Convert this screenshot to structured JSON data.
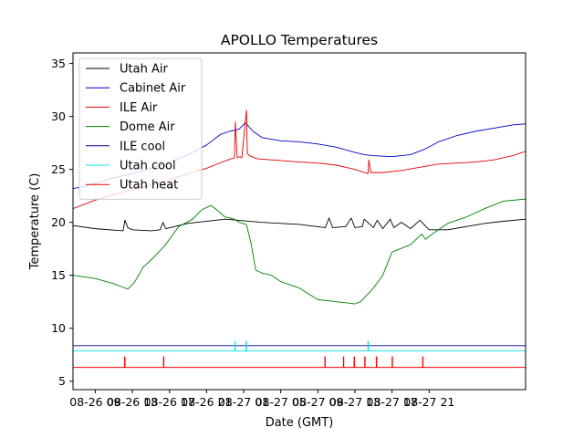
{
  "chart_data": {
    "type": "line",
    "title": "APOLLO Temperatures",
    "xlabel": "Date (GMT)",
    "ylabel": "Temperature (C)",
    "x_unit": "hours since 08-26 00:00",
    "xlim": [
      -2.4,
      46.4
    ],
    "ylim": [
      4.2,
      36.0
    ],
    "xticks": [
      {
        "x": 0,
        "label": "08-26 09"
      },
      {
        "x": 4,
        "label": "08-26 13"
      },
      {
        "x": 8,
        "label": "08-26 17"
      },
      {
        "x": 12,
        "label": "08-26 21"
      },
      {
        "x": 16,
        "label": "08-27 01"
      },
      {
        "x": 20,
        "label": "08-27 05"
      },
      {
        "x": 24,
        "label": "08-27 09"
      },
      {
        "x": 28,
        "label": "08-27 13"
      },
      {
        "x": 32,
        "label": "08-27 17"
      },
      {
        "x": 36,
        "label": "08-27 21"
      }
    ],
    "yticks": [
      5,
      10,
      15,
      20,
      25,
      30,
      35
    ],
    "legend_position": "top-left",
    "series": [
      {
        "name": "Utah Air",
        "color": "#000000",
        "x": [
          -2.4,
          0,
          3,
          3.2,
          3.5,
          4,
          6,
          7,
          7.3,
          7.6,
          10,
          14,
          18,
          22,
          24.8,
          25.2,
          25.6,
          27,
          27.6,
          28,
          28.8,
          29,
          30,
          30.4,
          31,
          31.8,
          32.2,
          33,
          34,
          35,
          36,
          38,
          40,
          42,
          44,
          46.4
        ],
        "y": [
          19.7,
          19.4,
          19.2,
          20.2,
          19.5,
          19.3,
          19.2,
          19.3,
          20.0,
          19.4,
          19.9,
          20.3,
          20.0,
          19.8,
          19.5,
          20.4,
          19.5,
          19.6,
          20.4,
          19.5,
          19.6,
          20.3,
          19.5,
          20.2,
          19.4,
          20.3,
          19.5,
          20.0,
          19.4,
          20.2,
          19.3,
          19.3,
          19.6,
          19.9,
          20.1,
          20.3
        ]
      },
      {
        "name": "Cabinet Air",
        "color": "#0000cc",
        "x": [
          -2.4,
          -1,
          0,
          2,
          4,
          6,
          8,
          10,
          12,
          13.5,
          14.5,
          15.5,
          16.2,
          17,
          18,
          20,
          22,
          24,
          26,
          28,
          29,
          30,
          32,
          34,
          35.5,
          37,
          39,
          41,
          43,
          45,
          46.4
        ],
        "y": [
          23.2,
          23.4,
          23.7,
          24.2,
          24.6,
          25.1,
          25.6,
          26.4,
          27.3,
          28.3,
          28.6,
          28.8,
          29.4,
          28.6,
          28.0,
          27.7,
          27.6,
          27.4,
          27.1,
          26.6,
          26.4,
          26.3,
          26.2,
          26.4,
          26.9,
          27.6,
          28.2,
          28.6,
          28.9,
          29.2,
          29.3
        ]
      },
      {
        "name": "ILE Air",
        "color": "#e00000",
        "x": [
          -2.4,
          0,
          2,
          4,
          6,
          8,
          10,
          12,
          14,
          15,
          15.1,
          15.3,
          15.6,
          15.8,
          16.3,
          16.4,
          16.6,
          17.5,
          19,
          22,
          24,
          26,
          28,
          29.4,
          29.5,
          29.7,
          31,
          33,
          35,
          37,
          39,
          41,
          43,
          45,
          46.4
        ],
        "y": [
          21.3,
          22.1,
          22.6,
          23.1,
          23.5,
          24.0,
          24.6,
          25.1,
          25.8,
          26.1,
          29.5,
          26.1,
          26.2,
          26.1,
          30.6,
          26.5,
          26.3,
          26.0,
          25.9,
          25.7,
          25.6,
          25.4,
          25.0,
          24.6,
          25.9,
          24.7,
          24.7,
          24.9,
          25.2,
          25.5,
          25.6,
          25.7,
          25.9,
          26.3,
          26.7
        ]
      },
      {
        "name": "Dome Air",
        "color": "#008000",
        "x": [
          -2.4,
          0,
          2,
          3.5,
          4.2,
          5.2,
          6.2,
          7.5,
          9,
          10.5,
          11.5,
          12.5,
          13.2,
          14,
          15,
          15.5,
          16.3,
          16.8,
          17.3,
          18,
          19,
          20,
          22,
          24,
          26,
          27,
          28,
          28.6,
          30,
          31,
          32,
          34,
          35.2,
          35.6,
          36.5,
          38,
          40,
          42,
          44,
          46.4
        ],
        "y": [
          15.0,
          14.7,
          14.2,
          13.7,
          14.3,
          15.8,
          16.6,
          17.8,
          19.6,
          20.3,
          21.2,
          21.6,
          21.1,
          20.5,
          20.3,
          20.0,
          19.8,
          18.0,
          15.5,
          15.2,
          15.0,
          14.4,
          13.8,
          12.7,
          12.5,
          12.4,
          12.3,
          12.5,
          13.8,
          15.0,
          17.2,
          17.9,
          18.9,
          18.4,
          19.0,
          19.9,
          20.5,
          21.3,
          22.0,
          22.2
        ]
      },
      {
        "name": "ILE cool",
        "color": "#0000a0",
        "x": [
          -2.4,
          46.4
        ],
        "y": [
          8.35,
          8.35
        ]
      },
      {
        "name": "Utah cool",
        "color": "#00e5e5",
        "x": [
          -2.4,
          15.05,
          15.05,
          15.1,
          15.1,
          16.25,
          16.25,
          16.3,
          16.3,
          29.4,
          29.4,
          29.45,
          29.45,
          46.4
        ],
        "y": [
          7.85,
          7.85,
          8.75,
          8.75,
          7.85,
          7.85,
          8.75,
          8.75,
          7.85,
          7.85,
          8.75,
          8.75,
          7.85,
          7.85
        ]
      },
      {
        "name": "Utah heat",
        "color": "#ff0000",
        "x": [
          -2.4,
          3.15,
          3.15,
          3.2,
          3.2,
          7.35,
          7.35,
          7.4,
          7.4,
          24.75,
          24.75,
          24.8,
          24.8,
          26.75,
          26.75,
          26.8,
          26.8,
          27.9,
          27.9,
          27.95,
          27.95,
          29.05,
          29.05,
          29.1,
          29.1,
          30.3,
          30.3,
          30.35,
          30.35,
          32.0,
          32.0,
          32.05,
          32.05,
          35.3,
          35.3,
          35.35,
          35.35,
          46.4
        ],
        "y": [
          6.3,
          6.3,
          7.3,
          7.3,
          6.3,
          6.3,
          7.3,
          7.3,
          6.3,
          6.3,
          7.3,
          7.3,
          6.3,
          6.3,
          7.3,
          7.3,
          6.3,
          6.3,
          7.3,
          7.3,
          6.3,
          6.3,
          7.3,
          7.3,
          6.3,
          6.3,
          7.3,
          7.3,
          6.3,
          6.3,
          7.3,
          7.3,
          6.3,
          6.3,
          7.3,
          7.3,
          6.3,
          6.3
        ]
      }
    ]
  }
}
